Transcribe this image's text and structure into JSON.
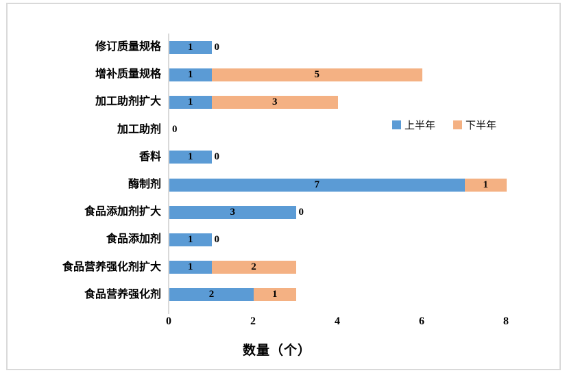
{
  "chart_data": {
    "type": "bar",
    "orientation": "horizontal",
    "stacked": true,
    "title": "",
    "xlabel": "数量（个）",
    "ylabel": "",
    "categories": [
      "修订质量规格",
      "增补质量规格",
      "加工助剂扩大",
      "加工助剂",
      "香料",
      "酶制剂",
      "食品添加剂扩大",
      "食品添加剂",
      "食品营养强化剂扩大",
      "食品营养强化剂"
    ],
    "series": [
      {
        "name": "上半年",
        "color": "#5b9bd5",
        "values": [
          1,
          1,
          1,
          0,
          1,
          7,
          3,
          1,
          1,
          2
        ]
      },
      {
        "name": "下半年",
        "color": "#f4b183",
        "values": [
          0,
          5,
          3,
          0,
          0,
          1,
          0,
          0,
          2,
          1
        ]
      }
    ],
    "xticks": [
      0,
      2,
      4,
      6,
      8
    ],
    "xlim": [
      0,
      8
    ],
    "grid": false,
    "legend_position": "middle-right",
    "data_labels": true,
    "axis_line_color": "#d9d9d9",
    "frame_border_color": "#d9d9d9",
    "label_color": "#000000"
  }
}
